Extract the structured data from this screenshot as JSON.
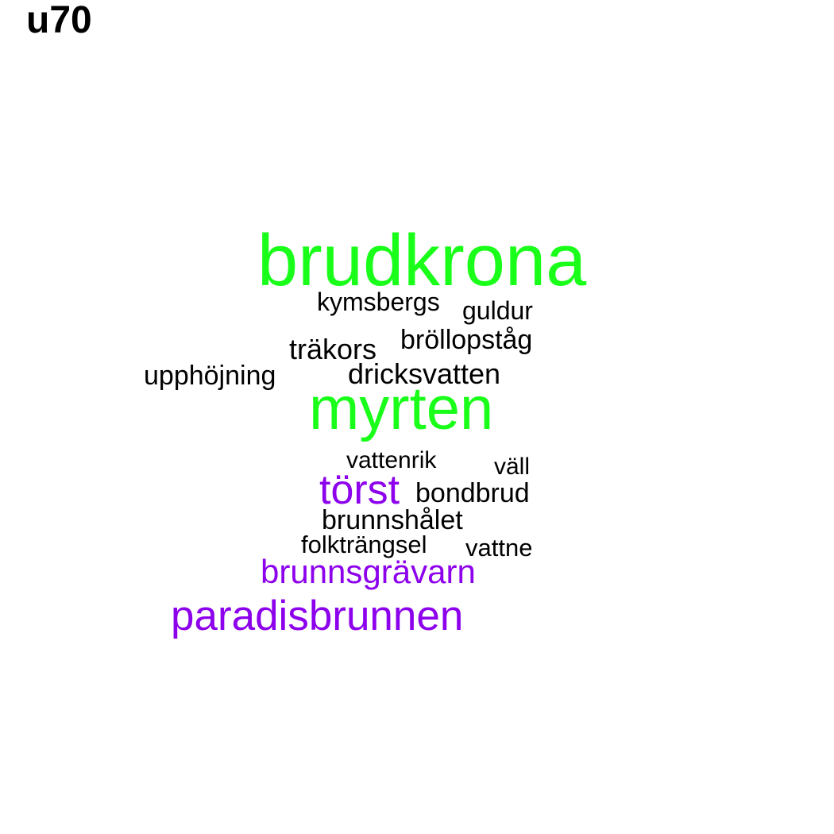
{
  "title": "u70",
  "colors": {
    "green": "#1aff1a",
    "purple": "#8c00ec",
    "black": "#000000"
  },
  "words": [
    {
      "text": "brudkrona",
      "color": "green"
    },
    {
      "text": "kymsbergs",
      "color": "black"
    },
    {
      "text": "guldur",
      "color": "black"
    },
    {
      "text": "bröllopståg",
      "color": "black"
    },
    {
      "text": "träkors",
      "color": "black"
    },
    {
      "text": "upphöjning",
      "color": "black"
    },
    {
      "text": "dricksvatten",
      "color": "black"
    },
    {
      "text": "myrten",
      "color": "green"
    },
    {
      "text": "vattenrik",
      "color": "black"
    },
    {
      "text": "väll",
      "color": "black"
    },
    {
      "text": "törst",
      "color": "purple"
    },
    {
      "text": "bondbrud",
      "color": "black"
    },
    {
      "text": "brunnshålet",
      "color": "black"
    },
    {
      "text": "folkträngsel",
      "color": "black"
    },
    {
      "text": "vattne",
      "color": "black"
    },
    {
      "text": "brunnsgrävarn",
      "color": "purple"
    },
    {
      "text": "paradisbrunnen",
      "color": "purple"
    }
  ]
}
